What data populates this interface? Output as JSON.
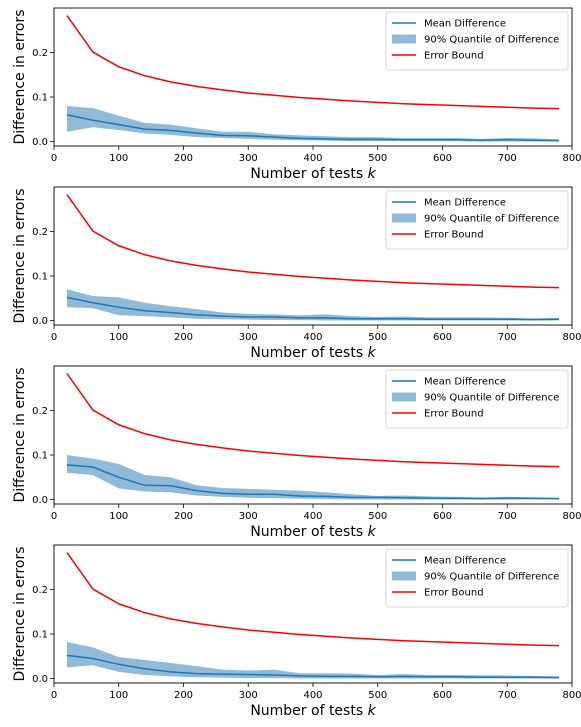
{
  "chart_data": [
    {
      "type": "line",
      "xlabel": "Number of tests",
      "xlabel_var": "k",
      "ylabel": "Difference in errors",
      "xlim": [
        0,
        800
      ],
      "ylim": [
        -0.01,
        0.3
      ],
      "xticks": [
        "0",
        "100",
        "200",
        "300",
        "400",
        "500",
        "600",
        "700",
        "800"
      ],
      "yticks": [
        "0.0",
        "0.1",
        "0.2"
      ],
      "legend": [
        "Mean Difference",
        "90% Quantile of Difference",
        "Error Bound"
      ],
      "legend_position": "top-right",
      "colors": {
        "mean": "#1f77b4",
        "band": "#1f77b4",
        "bound": "#ff0000"
      },
      "x": [
        20,
        60,
        100,
        140,
        180,
        220,
        260,
        300,
        340,
        380,
        420,
        460,
        500,
        540,
        580,
        620,
        660,
        700,
        740,
        780
      ],
      "series": [
        {
          "name": "Mean Difference",
          "values": [
            0.06,
            0.048,
            0.038,
            0.028,
            0.025,
            0.019,
            0.014,
            0.013,
            0.01,
            0.007,
            0.006,
            0.005,
            0.005,
            0.004,
            0.004,
            0.004,
            0.003,
            0.004,
            0.003,
            0.002
          ]
        },
        {
          "name": "90% Quantile of Difference",
          "lower": [
            0.022,
            0.032,
            0.026,
            0.018,
            0.015,
            0.01,
            0.008,
            0.006,
            0.004,
            0.003,
            0.002,
            0.001,
            0.001,
            0.001,
            0.001,
            0.001,
            0.0,
            0.0,
            0.0,
            0.0
          ],
          "upper": [
            0.08,
            0.075,
            0.058,
            0.042,
            0.038,
            0.03,
            0.022,
            0.022,
            0.016,
            0.014,
            0.012,
            0.01,
            0.01,
            0.008,
            0.008,
            0.008,
            0.006,
            0.008,
            0.007,
            0.005
          ]
        },
        {
          "name": "Error Bound",
          "values": [
            0.283,
            0.201,
            0.168,
            0.148,
            0.134,
            0.124,
            0.116,
            0.109,
            0.104,
            0.099,
            0.095,
            0.091,
            0.088,
            0.085,
            0.083,
            0.081,
            0.079,
            0.077,
            0.075,
            0.074
          ]
        }
      ]
    },
    {
      "type": "line",
      "xlabel": "Number of tests",
      "xlabel_var": "k",
      "ylabel": "Difference in errors",
      "xlim": [
        0,
        800
      ],
      "ylim": [
        -0.01,
        0.3
      ],
      "xticks": [
        "0",
        "100",
        "200",
        "300",
        "400",
        "500",
        "600",
        "700",
        "800"
      ],
      "yticks": [
        "0.0",
        "0.1",
        "0.2"
      ],
      "legend": [
        "Mean Difference",
        "90% Quantile of Difference",
        "Error Bound"
      ],
      "legend_position": "top-right",
      "colors": {
        "mean": "#1f77b4",
        "band": "#1f77b4",
        "bound": "#ff0000"
      },
      "x": [
        20,
        60,
        100,
        140,
        180,
        220,
        260,
        300,
        340,
        380,
        420,
        460,
        500,
        540,
        580,
        620,
        660,
        700,
        740,
        780
      ],
      "series": [
        {
          "name": "Mean Difference",
          "values": [
            0.052,
            0.04,
            0.03,
            0.022,
            0.018,
            0.013,
            0.01,
            0.008,
            0.008,
            0.006,
            0.006,
            0.004,
            0.004,
            0.004,
            0.003,
            0.003,
            0.003,
            0.003,
            0.002,
            0.003
          ]
        },
        {
          "name": "90% Quantile of Difference",
          "lower": [
            0.03,
            0.028,
            0.012,
            0.01,
            0.007,
            0.004,
            0.003,
            0.002,
            0.001,
            0.001,
            0.0,
            0.0,
            0.0,
            0.0,
            0.0,
            0.0,
            0.0,
            0.0,
            0.0,
            0.0
          ],
          "upper": [
            0.07,
            0.055,
            0.052,
            0.04,
            0.032,
            0.026,
            0.018,
            0.015,
            0.014,
            0.012,
            0.014,
            0.01,
            0.008,
            0.009,
            0.007,
            0.007,
            0.007,
            0.006,
            0.005,
            0.006
          ]
        },
        {
          "name": "Error Bound",
          "values": [
            0.283,
            0.201,
            0.168,
            0.148,
            0.134,
            0.124,
            0.116,
            0.109,
            0.104,
            0.099,
            0.095,
            0.091,
            0.088,
            0.085,
            0.083,
            0.081,
            0.079,
            0.077,
            0.075,
            0.074
          ]
        }
      ]
    },
    {
      "type": "line",
      "xlabel": "Number of tests",
      "xlabel_var": "k",
      "ylabel": "Difference in errors",
      "xlim": [
        0,
        800
      ],
      "ylim": [
        -0.01,
        0.3
      ],
      "xticks": [
        "0",
        "100",
        "200",
        "300",
        "400",
        "500",
        "600",
        "700",
        "800"
      ],
      "yticks": [
        "0.0",
        "0.1",
        "0.2"
      ],
      "legend": [
        "Mean Difference",
        "90% Quantile of Difference",
        "Error Bound"
      ],
      "legend_position": "top-right",
      "colors": {
        "mean": "#1f77b4",
        "band": "#1f77b4",
        "bound": "#ff0000"
      },
      "x": [
        20,
        60,
        100,
        140,
        180,
        220,
        260,
        300,
        340,
        380,
        420,
        460,
        500,
        540,
        580,
        620,
        660,
        700,
        740,
        780
      ],
      "series": [
        {
          "name": "Mean Difference",
          "values": [
            0.078,
            0.073,
            0.05,
            0.032,
            0.031,
            0.02,
            0.014,
            0.012,
            0.012,
            0.008,
            0.007,
            0.005,
            0.005,
            0.004,
            0.003,
            0.003,
            0.002,
            0.003,
            0.003,
            0.002
          ]
        },
        {
          "name": "90% Quantile of Difference",
          "lower": [
            0.06,
            0.055,
            0.025,
            0.018,
            0.016,
            0.009,
            0.006,
            0.004,
            0.003,
            0.002,
            0.001,
            0.0,
            0.0,
            0.0,
            0.0,
            0.0,
            0.0,
            0.0,
            0.0,
            0.0
          ],
          "upper": [
            0.1,
            0.092,
            0.08,
            0.055,
            0.05,
            0.032,
            0.026,
            0.024,
            0.022,
            0.02,
            0.016,
            0.012,
            0.008,
            0.009,
            0.007,
            0.006,
            0.005,
            0.006,
            0.005,
            0.004
          ]
        },
        {
          "name": "Error Bound",
          "values": [
            0.283,
            0.201,
            0.168,
            0.148,
            0.134,
            0.124,
            0.116,
            0.109,
            0.104,
            0.099,
            0.095,
            0.091,
            0.088,
            0.085,
            0.083,
            0.081,
            0.079,
            0.077,
            0.075,
            0.074
          ]
        }
      ]
    },
    {
      "type": "line",
      "xlabel": "Number of tests",
      "xlabel_var": "k",
      "ylabel": "Difference in errors",
      "xlim": [
        0,
        800
      ],
      "ylim": [
        -0.01,
        0.3
      ],
      "xticks": [
        "0",
        "100",
        "200",
        "300",
        "400",
        "500",
        "600",
        "700",
        "800"
      ],
      "yticks": [
        "0.0",
        "0.1",
        "0.2"
      ],
      "legend": [
        "Mean Difference",
        "90% Quantile of Difference",
        "Error Bound"
      ],
      "legend_position": "top-right",
      "colors": {
        "mean": "#1f77b4",
        "band": "#1f77b4",
        "bound": "#ff0000"
      },
      "x": [
        20,
        60,
        100,
        140,
        180,
        220,
        260,
        300,
        340,
        380,
        420,
        460,
        500,
        540,
        580,
        620,
        660,
        700,
        740,
        780
      ],
      "series": [
        {
          "name": "Mean Difference",
          "values": [
            0.052,
            0.045,
            0.032,
            0.022,
            0.015,
            0.011,
            0.01,
            0.009,
            0.008,
            0.006,
            0.005,
            0.005,
            0.004,
            0.005,
            0.004,
            0.004,
            0.003,
            0.003,
            0.003,
            0.002
          ]
        },
        {
          "name": "90% Quantile of Difference",
          "lower": [
            0.025,
            0.03,
            0.015,
            0.008,
            0.005,
            0.003,
            0.002,
            0.001,
            0.001,
            0.0,
            0.0,
            0.0,
            0.0,
            0.0,
            0.0,
            0.0,
            0.0,
            0.0,
            0.0,
            0.0
          ],
          "upper": [
            0.082,
            0.07,
            0.048,
            0.042,
            0.035,
            0.028,
            0.02,
            0.018,
            0.02,
            0.012,
            0.012,
            0.011,
            0.008,
            0.01,
            0.008,
            0.008,
            0.007,
            0.007,
            0.006,
            0.005
          ]
        },
        {
          "name": "Error Bound",
          "values": [
            0.283,
            0.201,
            0.168,
            0.148,
            0.134,
            0.124,
            0.116,
            0.109,
            0.104,
            0.099,
            0.095,
            0.091,
            0.088,
            0.085,
            0.083,
            0.081,
            0.079,
            0.077,
            0.075,
            0.074
          ]
        }
      ]
    }
  ]
}
